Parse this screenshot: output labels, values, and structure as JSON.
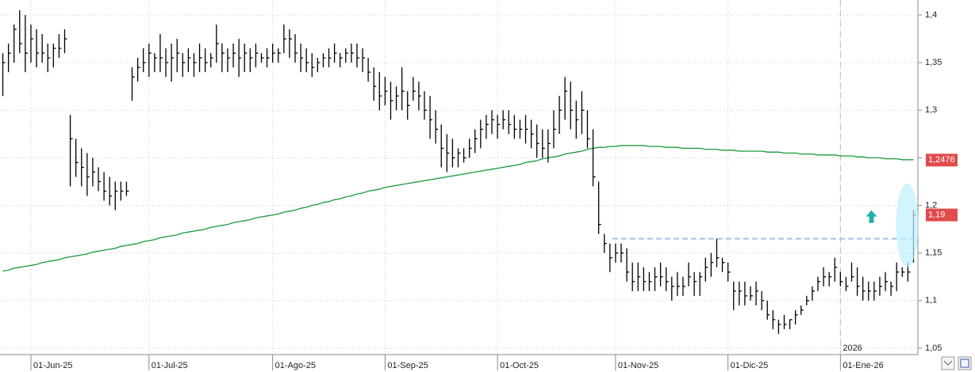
{
  "chart_data": {
    "type": "ohlc",
    "categories": [
      null,
      null,
      null,
      null,
      null,
      "01-Jun-25",
      null,
      null,
      null,
      null,
      null,
      null,
      null,
      null,
      null,
      null,
      null,
      null,
      null,
      null,
      null,
      null,
      null,
      null,
      null,
      null,
      "01-Jul-25",
      null,
      null,
      null,
      null,
      null,
      null,
      null,
      null,
      null,
      null,
      null,
      null,
      null,
      null,
      null,
      null,
      null,
      null,
      null,
      null,
      null,
      "01-Ago-25",
      null,
      null,
      null,
      null,
      null,
      null,
      null,
      null,
      null,
      null,
      null,
      null,
      null,
      null,
      null,
      null,
      null,
      null,
      null,
      "01-Sep-25",
      null,
      null,
      null,
      null,
      null,
      null,
      null,
      null,
      null,
      null,
      null,
      null,
      null,
      null,
      null,
      null,
      null,
      null,
      null,
      "01-Oct-25",
      null,
      null,
      null,
      null,
      null,
      null,
      null,
      null,
      null,
      null,
      null,
      null,
      null,
      null,
      null,
      null,
      null,
      null,
      null,
      null,
      "01-Nov-25",
      null,
      null,
      null,
      null,
      null,
      null,
      null,
      null,
      null,
      null,
      null,
      null,
      null,
      null,
      null,
      null,
      null,
      null,
      null,
      "01-Dic-25",
      null,
      null,
      null,
      null,
      null,
      null,
      null,
      null,
      null,
      null,
      null,
      null,
      null,
      null,
      null,
      null,
      null,
      null,
      null,
      "01-Ene-26",
      null,
      null,
      null,
      null,
      null,
      null,
      null,
      null,
      null,
      null,
      null,
      null,
      null
    ],
    "ohlc": {
      "color": "#000000",
      "high": [
        1.36,
        1.37,
        1.39,
        1.405,
        1.4,
        1.39,
        1.385,
        1.38,
        1.37,
        1.37,
        1.38,
        1.385,
        1.295,
        1.27,
        1.26,
        1.255,
        1.25,
        1.24,
        1.235,
        1.23,
        1.225,
        1.225,
        1.225,
        1.345,
        1.355,
        1.365,
        1.37,
        1.36,
        1.38,
        1.365,
        1.37,
        1.375,
        1.36,
        1.365,
        1.36,
        1.37,
        1.365,
        1.36,
        1.39,
        1.37,
        1.365,
        1.37,
        1.375,
        1.37,
        1.365,
        1.37,
        1.36,
        1.365,
        1.37,
        1.365,
        1.39,
        1.385,
        1.38,
        1.37,
        1.365,
        1.36,
        1.355,
        1.36,
        1.365,
        1.37,
        1.36,
        1.365,
        1.37,
        1.37,
        1.365,
        1.355,
        1.345,
        1.34,
        1.335,
        1.33,
        1.325,
        1.345,
        1.32,
        1.335,
        1.33,
        1.32,
        1.315,
        1.3,
        1.285,
        1.275,
        1.27,
        1.26,
        1.26,
        1.27,
        1.28,
        1.29,
        1.295,
        1.3,
        1.295,
        1.3,
        1.3,
        1.295,
        1.29,
        1.295,
        1.29,
        1.285,
        1.28,
        1.28,
        1.3,
        1.315,
        1.335,
        1.33,
        1.31,
        1.32,
        1.3,
        1.28,
        1.225,
        1.17,
        1.16,
        1.16,
        1.16,
        1.155,
        1.14,
        1.14,
        1.135,
        1.13,
        1.135,
        1.14,
        1.135,
        1.125,
        1.13,
        1.125,
        1.14,
        1.13,
        1.13,
        1.145,
        1.15,
        1.165,
        1.145,
        1.14,
        1.12,
        1.12,
        1.12,
        1.115,
        1.12,
        1.11,
        1.1,
        1.09,
        1.08,
        1.085,
        1.08,
        1.09,
        1.095,
        1.105,
        1.115,
        1.125,
        1.135,
        1.13,
        1.145,
        1.13,
        1.125,
        1.14,
        1.135,
        1.125,
        1.12,
        1.12,
        1.125,
        1.13,
        1.12,
        1.14,
        1.135,
        1.14,
        1.195
      ],
      "low": [
        1.315,
        1.34,
        1.35,
        1.36,
        1.34,
        1.35,
        1.345,
        1.35,
        1.34,
        1.345,
        1.355,
        1.36,
        1.22,
        1.23,
        1.22,
        1.21,
        1.22,
        1.215,
        1.205,
        1.2,
        1.195,
        1.205,
        1.21,
        1.31,
        1.33,
        1.34,
        1.335,
        1.34,
        1.34,
        1.335,
        1.33,
        1.34,
        1.335,
        1.34,
        1.335,
        1.34,
        1.34,
        1.345,
        1.35,
        1.34,
        1.34,
        1.345,
        1.335,
        1.34,
        1.34,
        1.345,
        1.35,
        1.345,
        1.35,
        1.35,
        1.36,
        1.355,
        1.35,
        1.34,
        1.34,
        1.335,
        1.34,
        1.345,
        1.345,
        1.35,
        1.345,
        1.35,
        1.35,
        1.345,
        1.34,
        1.33,
        1.31,
        1.3,
        1.305,
        1.29,
        1.3,
        1.3,
        1.29,
        1.31,
        1.3,
        1.29,
        1.27,
        1.265,
        1.24,
        1.235,
        1.24,
        1.24,
        1.245,
        1.25,
        1.255,
        1.26,
        1.27,
        1.275,
        1.27,
        1.28,
        1.275,
        1.27,
        1.27,
        1.265,
        1.26,
        1.25,
        1.25,
        1.245,
        1.26,
        1.275,
        1.29,
        1.28,
        1.27,
        1.275,
        1.26,
        1.22,
        1.17,
        1.15,
        1.13,
        1.14,
        1.14,
        1.12,
        1.11,
        1.11,
        1.11,
        1.11,
        1.11,
        1.115,
        1.11,
        1.1,
        1.105,
        1.105,
        1.115,
        1.105,
        1.105,
        1.12,
        1.125,
        1.135,
        1.13,
        1.12,
        1.09,
        1.095,
        1.095,
        1.1,
        1.095,
        1.09,
        1.08,
        1.07,
        1.065,
        1.07,
        1.07,
        1.075,
        1.085,
        1.095,
        1.1,
        1.11,
        1.115,
        1.115,
        1.12,
        1.115,
        1.11,
        1.12,
        1.105,
        1.1,
        1.1,
        1.1,
        1.105,
        1.11,
        1.105,
        1.11,
        1.125,
        1.12,
        1.14
      ],
      "close": [
        1.35,
        1.36,
        1.385,
        1.37,
        1.36,
        1.375,
        1.36,
        1.36,
        1.355,
        1.365,
        1.365,
        1.375,
        1.27,
        1.245,
        1.24,
        1.23,
        1.235,
        1.225,
        1.215,
        1.21,
        1.215,
        1.215,
        1.215,
        1.335,
        1.345,
        1.35,
        1.36,
        1.355,
        1.355,
        1.35,
        1.355,
        1.36,
        1.35,
        1.355,
        1.35,
        1.355,
        1.35,
        1.355,
        1.37,
        1.36,
        1.355,
        1.36,
        1.355,
        1.36,
        1.355,
        1.36,
        1.355,
        1.355,
        1.36,
        1.36,
        1.375,
        1.375,
        1.36,
        1.355,
        1.35,
        1.345,
        1.35,
        1.355,
        1.355,
        1.36,
        1.355,
        1.36,
        1.36,
        1.355,
        1.355,
        1.34,
        1.325,
        1.315,
        1.32,
        1.31,
        1.315,
        1.32,
        1.305,
        1.32,
        1.315,
        1.3,
        1.29,
        1.28,
        1.26,
        1.255,
        1.25,
        1.255,
        1.25,
        1.26,
        1.27,
        1.28,
        1.285,
        1.29,
        1.285,
        1.29,
        1.285,
        1.28,
        1.28,
        1.28,
        1.275,
        1.265,
        1.26,
        1.265,
        1.28,
        1.3,
        1.32,
        1.3,
        1.29,
        1.3,
        1.27,
        1.23,
        1.18,
        1.16,
        1.145,
        1.15,
        1.15,
        1.13,
        1.12,
        1.125,
        1.12,
        1.12,
        1.125,
        1.125,
        1.12,
        1.115,
        1.115,
        1.115,
        1.125,
        1.12,
        1.125,
        1.135,
        1.14,
        1.145,
        1.14,
        1.13,
        1.11,
        1.11,
        1.105,
        1.105,
        1.11,
        1.1,
        1.085,
        1.08,
        1.075,
        1.075,
        1.08,
        1.085,
        1.09,
        1.1,
        1.11,
        1.12,
        1.125,
        1.125,
        1.135,
        1.12,
        1.115,
        1.125,
        1.115,
        1.11,
        1.11,
        1.11,
        1.115,
        1.12,
        1.115,
        1.13,
        1.13,
        1.13,
        1.19
      ]
    },
    "moving_average": {
      "color": "#1a9a3a",
      "values": [
        1.131,
        1.132,
        1.134,
        1.135,
        1.136,
        1.137,
        1.138,
        1.14,
        1.141,
        1.142,
        1.143,
        1.145,
        1.146,
        1.147,
        1.148,
        1.149,
        1.151,
        1.152,
        1.153,
        1.154,
        1.155,
        1.157,
        1.158,
        1.159,
        1.16,
        1.162,
        1.163,
        1.164,
        1.166,
        1.167,
        1.168,
        1.169,
        1.171,
        1.172,
        1.173,
        1.174,
        1.175,
        1.177,
        1.178,
        1.179,
        1.18,
        1.182,
        1.183,
        1.184,
        1.185,
        1.187,
        1.188,
        1.189,
        1.19,
        1.191,
        1.193,
        1.194,
        1.195,
        1.197,
        1.198,
        1.2,
        1.201,
        1.203,
        1.204,
        1.206,
        1.207,
        1.209,
        1.21,
        1.212,
        1.213,
        1.215,
        1.216,
        1.217,
        1.219,
        1.22,
        1.221,
        1.222,
        1.223,
        1.224,
        1.225,
        1.226,
        1.227,
        1.228,
        1.229,
        1.23,
        1.231,
        1.232,
        1.233,
        1.234,
        1.235,
        1.236,
        1.237,
        1.238,
        1.239,
        1.24,
        1.241,
        1.242,
        1.243,
        1.245,
        1.246,
        1.247,
        1.249,
        1.25,
        1.251,
        1.252,
        1.254,
        1.255,
        1.256,
        1.257,
        1.259,
        1.26,
        1.261,
        1.261,
        1.262,
        1.262,
        1.263,
        1.263,
        1.263,
        1.263,
        1.263,
        1.262,
        1.262,
        1.262,
        1.261,
        1.261,
        1.261,
        1.26,
        1.26,
        1.26,
        1.26,
        1.259,
        1.259,
        1.259,
        1.258,
        1.258,
        1.258,
        1.257,
        1.257,
        1.257,
        1.257,
        1.257,
        1.256,
        1.256,
        1.256,
        1.255,
        1.255,
        1.255,
        1.254,
        1.254,
        1.254,
        1.253,
        1.253,
        1.253,
        1.253,
        1.252,
        1.252,
        1.252,
        1.251,
        1.251,
        1.25,
        1.25,
        1.25,
        1.249,
        1.249,
        1.249,
        1.248,
        1.248,
        1.248
      ]
    },
    "moving_average_label": {
      "value": 1.2476,
      "label": "1,2476"
    },
    "last_price_label": {
      "value": 1.19,
      "label": "1,19"
    },
    "support_level": 1.165,
    "year_marker": "2026",
    "ylim": [
      1.0433,
      1.4158
    ],
    "yticks": [
      {
        "value": 1.05,
        "label": "1,05"
      },
      {
        "value": 1.1,
        "label": "1,1"
      },
      {
        "value": 1.15,
        "label": "1,15"
      },
      {
        "value": 1.2,
        "label": "1,2"
      },
      {
        "value": 1.25,
        "label": "1,25"
      },
      {
        "value": 1.3,
        "label": "1,3"
      },
      {
        "value": 1.35,
        "label": "1,35"
      },
      {
        "value": 1.4,
        "label": "1,4"
      }
    ],
    "grid": true
  }
}
